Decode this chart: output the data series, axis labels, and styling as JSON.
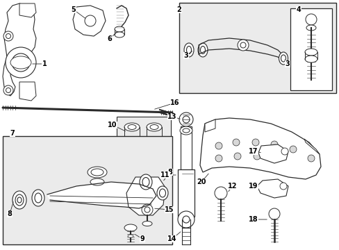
{
  "background_color": "#ffffff",
  "line_color": "#2a2a2a",
  "box_fill": "#ebebeb",
  "white": "#ffffff",
  "gray_light": "#d8d8d8"
}
